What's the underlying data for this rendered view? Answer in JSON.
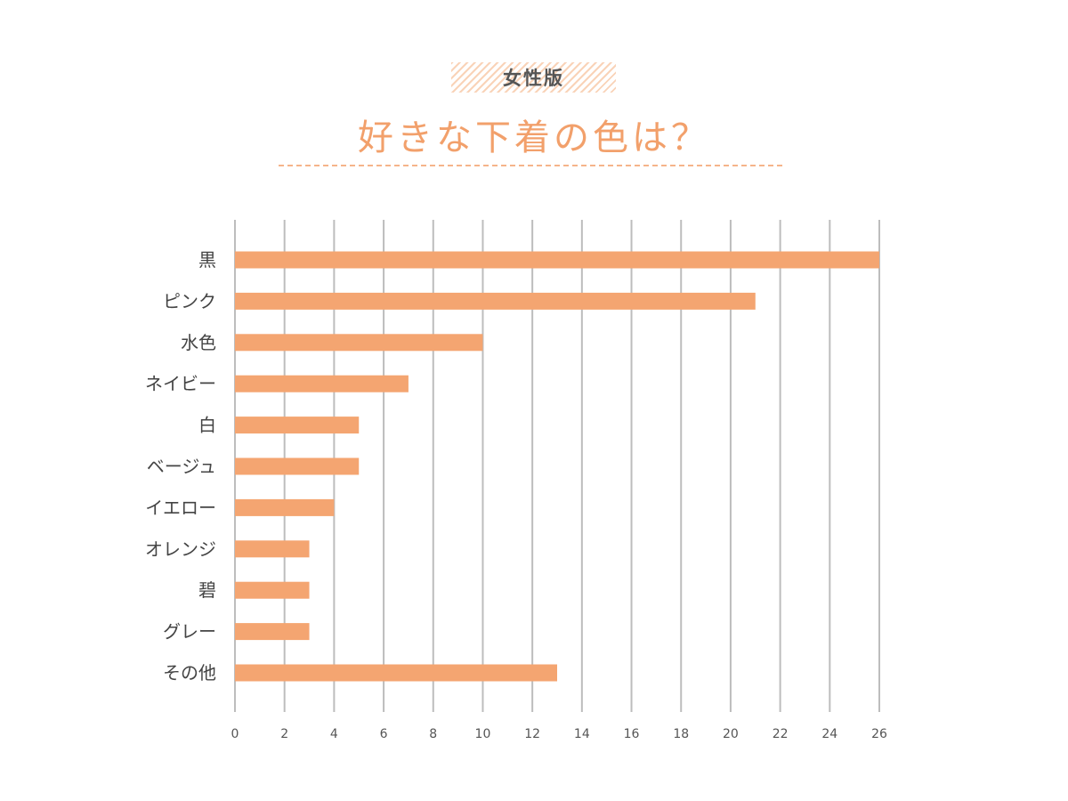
{
  "header": {
    "badge": "女性版",
    "title": "好きな下着の色は？"
  },
  "chart_data": {
    "type": "bar",
    "orientation": "horizontal",
    "title": "好きな下着の色は？",
    "subtitle": "女性版",
    "categories": [
      "黒",
      "ピンク",
      "水色",
      "ネイビー",
      "白",
      "ベージュ",
      "イエロー",
      "オレンジ",
      "碧",
      "グレー",
      "その他"
    ],
    "values": [
      26,
      21,
      10,
      7,
      5,
      5,
      4,
      3,
      3,
      3,
      13
    ],
    "xlim": [
      0,
      26
    ],
    "xticks": [
      0,
      2,
      4,
      6,
      8,
      10,
      12,
      14,
      16,
      18,
      20,
      22,
      24,
      26
    ],
    "grid": true,
    "xlabel": "",
    "ylabel": "",
    "bar_color": "#f4a571",
    "grid_color": "#bdbdbd"
  }
}
